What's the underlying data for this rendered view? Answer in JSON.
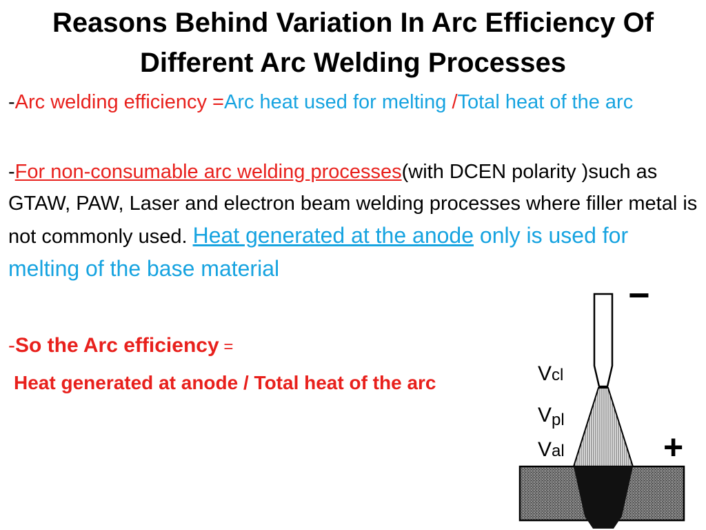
{
  "title": {
    "line1": "Reasons Behind Variation In Arc Efficiency Of",
    "line2": "Different Arc Welding Processes"
  },
  "definition": {
    "dash": "-",
    "label": "Arc welding efficiency =",
    "numerator": "Arc heat used for melting ",
    "slash": "/",
    "denominator": "Total heat of the arc"
  },
  "non_consumable": {
    "dash": "-",
    "link": "For non-consumable arc welding processes",
    "text": "(with DCEN polarity )such as GTAW, PAW, Laser and electron beam welding processes where filler metal is not commonly used. ",
    "highlight": "Heat generated at the anode",
    "highlight_rest": " only is used for melting of the base material"
  },
  "conclusion": {
    "dash": "-",
    "label": "So the Arc efficiency",
    "equals": " =",
    "formula": "Heat generated at anode / Total heat of the arc"
  },
  "diagram": {
    "minus": "−",
    "plus": "+",
    "vc": "V",
    "vc_sub": "cl",
    "vp": "V",
    "vp_sub": "pl",
    "va": "V",
    "va_sub": "al"
  }
}
